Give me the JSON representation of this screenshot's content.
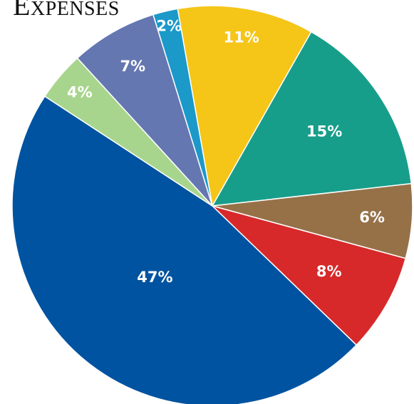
{
  "chart_data": {
    "type": "pie",
    "title": "Expenses",
    "slices": [
      {
        "label": "11%",
        "value": 11,
        "color": "#F5C518"
      },
      {
        "label": "15%",
        "value": 15,
        "color": "#179E8A"
      },
      {
        "label": "6%",
        "value": 6,
        "color": "#967148"
      },
      {
        "label": "8%",
        "value": 8,
        "color": "#D7292A"
      },
      {
        "label": "47%",
        "value": 47,
        "color": "#0053A0"
      },
      {
        "label": "4%",
        "value": 4,
        "color": "#A8D58D"
      },
      {
        "label": "7%",
        "value": 7,
        "color": "#6577B1"
      },
      {
        "label": "2%",
        "value": 2,
        "color": "#1B99C9"
      }
    ]
  }
}
